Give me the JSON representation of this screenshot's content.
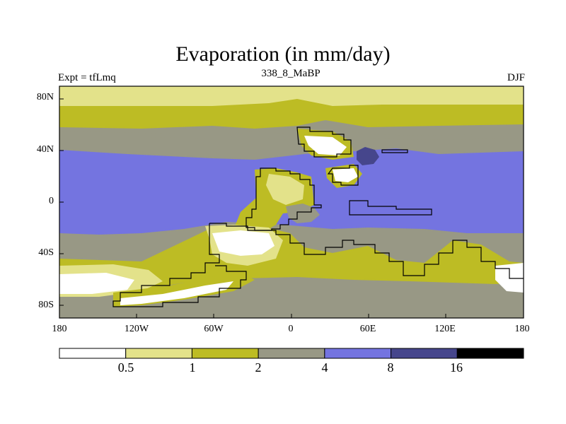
{
  "title": "Evaporation (in mm/day)",
  "subtitle_left": "Expt = tfLmq",
  "subtitle_center": "338_8_MaBP",
  "subtitle_right": "DJF",
  "lat_ticks": [
    "80N",
    "40N",
    "0",
    "40S",
    "80S"
  ],
  "lon_ticks": [
    "180",
    "120W",
    "60W",
    "0",
    "60E",
    "120E",
    "180"
  ],
  "colorbar": {
    "colors": [
      "#ffffff",
      "#e3e28a",
      "#bdbc24",
      "#989885",
      "#7474e0",
      "#46468c",
      "#000000"
    ],
    "labels": [
      "0.5",
      "1",
      "2",
      "4",
      "8",
      "16"
    ]
  }
}
